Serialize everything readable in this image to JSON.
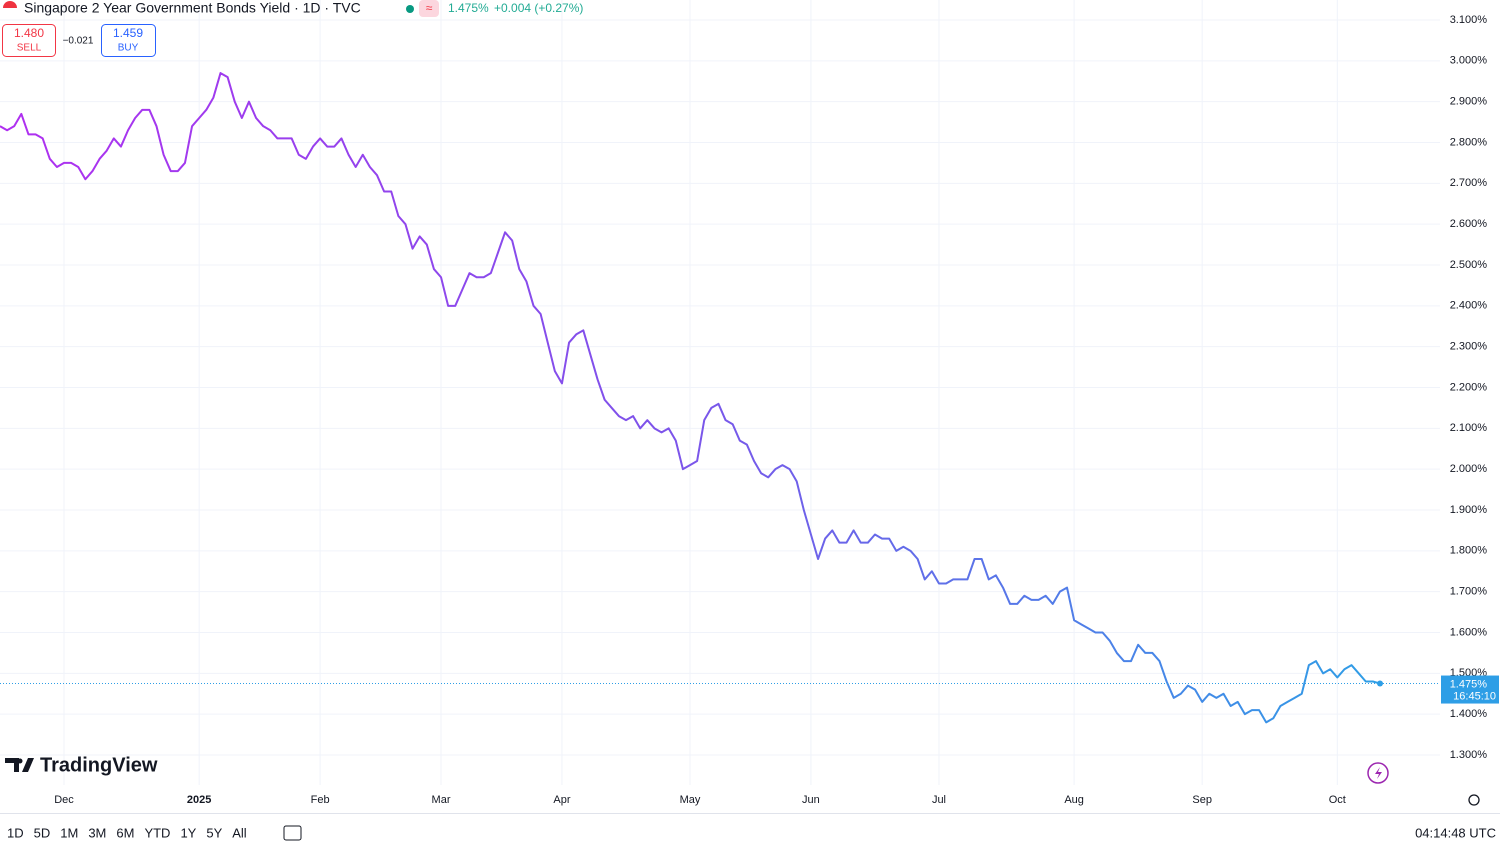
{
  "header": {
    "title": "Singapore 2 Year Government Bonds Yield · 1D · TVC",
    "price": "1.475%",
    "change": "+0.004 (+0.27%)",
    "sell_price": "1.480",
    "sell": "SELL",
    "spread": "−0.021",
    "buy_price": "1.459",
    "buy": "BUY"
  },
  "logo": "TradingView",
  "toolbar": {
    "ranges": [
      "1D",
      "5D",
      "1M",
      "3M",
      "6M",
      "YTD",
      "1Y",
      "5Y",
      "All"
    ],
    "clock": "04:14:48 UTC"
  },
  "chart_data": {
    "type": "line",
    "gradient": [
      "#b02ff0",
      "#7b55ea",
      "#2e9ee6"
    ],
    "ylim": [
      1.3,
      3.1
    ],
    "yticks": [
      {
        "value": 3.1,
        "label": "3.100%"
      },
      {
        "value": 3.0,
        "label": "3.000%"
      },
      {
        "value": 2.9,
        "label": "2.900%"
      },
      {
        "value": 2.8,
        "label": "2.800%"
      },
      {
        "value": 2.7,
        "label": "2.700%"
      },
      {
        "value": 2.6,
        "label": "2.600%"
      },
      {
        "value": 2.5,
        "label": "2.500%"
      },
      {
        "value": 2.4,
        "label": "2.400%"
      },
      {
        "value": 2.3,
        "label": "2.300%"
      },
      {
        "value": 2.2,
        "label": "2.200%"
      },
      {
        "value": 2.1,
        "label": "2.100%"
      },
      {
        "value": 2.0,
        "label": "2.000%"
      },
      {
        "value": 1.9,
        "label": "1.900%"
      },
      {
        "value": 1.8,
        "label": "1.800%"
      },
      {
        "value": 1.7,
        "label": "1.700%"
      },
      {
        "value": 1.6,
        "label": "1.600%"
      },
      {
        "value": 1.5,
        "label": "1.500%"
      },
      {
        "value": 1.4,
        "label": "1.400%"
      },
      {
        "value": 1.3,
        "label": "1.300%"
      }
    ],
    "grid": true,
    "last_price": {
      "value": 1.475,
      "label": "1.475%"
    },
    "countdown": "16:45:10",
    "categories": [
      null,
      null,
      null,
      null,
      null,
      null,
      null,
      null,
      null,
      "Dec",
      null,
      null,
      null,
      null,
      null,
      null,
      null,
      null,
      null,
      null,
      null,
      null,
      null,
      null,
      null,
      null,
      null,
      null,
      "2025",
      null,
      null,
      null,
      null,
      null,
      null,
      null,
      null,
      null,
      null,
      null,
      null,
      null,
      null,
      null,
      null,
      "Feb",
      null,
      null,
      null,
      null,
      null,
      null,
      null,
      null,
      null,
      null,
      null,
      null,
      null,
      null,
      null,
      null,
      "Mar",
      null,
      null,
      null,
      null,
      null,
      null,
      null,
      null,
      null,
      null,
      null,
      null,
      null,
      null,
      null,
      null,
      "Apr",
      null,
      null,
      null,
      null,
      null,
      null,
      null,
      null,
      null,
      null,
      null,
      null,
      null,
      null,
      null,
      null,
      null,
      "May",
      null,
      null,
      null,
      null,
      null,
      null,
      null,
      null,
      null,
      null,
      null,
      null,
      null,
      null,
      null,
      null,
      "Jun",
      null,
      null,
      null,
      null,
      null,
      null,
      null,
      null,
      null,
      null,
      null,
      null,
      null,
      null,
      null,
      null,
      null,
      "Jul",
      null,
      null,
      null,
      null,
      null,
      null,
      null,
      null,
      null,
      null,
      null,
      null,
      null,
      null,
      null,
      null,
      null,
      null,
      "Aug",
      null,
      null,
      null,
      null,
      null,
      null,
      null,
      null,
      null,
      null,
      null,
      null,
      null,
      null,
      null,
      null,
      null,
      "Sep",
      null,
      null,
      null,
      null,
      null,
      null,
      null,
      null,
      null,
      null,
      null,
      null,
      null,
      null,
      null,
      null,
      null,
      null,
      "Oct",
      null,
      null,
      null,
      null,
      null,
      null
    ],
    "values": [
      2.84,
      2.83,
      2.84,
      2.87,
      2.82,
      2.82,
      2.81,
      2.76,
      2.74,
      2.75,
      2.75,
      2.74,
      2.71,
      2.73,
      2.76,
      2.78,
      2.81,
      2.79,
      2.83,
      2.86,
      2.88,
      2.88,
      2.84,
      2.77,
      2.73,
      2.73,
      2.75,
      2.84,
      2.86,
      2.88,
      2.91,
      2.97,
      2.96,
      2.9,
      2.86,
      2.9,
      2.86,
      2.84,
      2.83,
      2.81,
      2.81,
      2.81,
      2.77,
      2.76,
      2.79,
      2.81,
      2.79,
      2.79,
      2.81,
      2.77,
      2.74,
      2.77,
      2.74,
      2.72,
      2.68,
      2.68,
      2.62,
      2.6,
      2.54,
      2.57,
      2.55,
      2.49,
      2.47,
      2.4,
      2.4,
      2.44,
      2.48,
      2.47,
      2.47,
      2.48,
      2.53,
      2.58,
      2.56,
      2.49,
      2.46,
      2.4,
      2.38,
      2.31,
      2.24,
      2.21,
      2.31,
      2.33,
      2.34,
      2.28,
      2.22,
      2.17,
      2.15,
      2.13,
      2.12,
      2.13,
      2.1,
      2.12,
      2.1,
      2.09,
      2.1,
      2.07,
      2.0,
      2.01,
      2.02,
      2.12,
      2.15,
      2.16,
      2.12,
      2.11,
      2.07,
      2.06,
      2.02,
      1.99,
      1.98,
      2.0,
      2.01,
      2.0,
      1.97,
      1.9,
      1.84,
      1.78,
      1.83,
      1.85,
      1.82,
      1.82,
      1.85,
      1.82,
      1.82,
      1.84,
      1.83,
      1.83,
      1.8,
      1.81,
      1.8,
      1.78,
      1.73,
      1.75,
      1.72,
      1.72,
      1.73,
      1.73,
      1.73,
      1.78,
      1.78,
      1.73,
      1.74,
      1.71,
      1.67,
      1.67,
      1.69,
      1.68,
      1.68,
      1.69,
      1.67,
      1.7,
      1.71,
      1.63,
      1.62,
      1.61,
      1.6,
      1.6,
      1.58,
      1.55,
      1.53,
      1.53,
      1.57,
      1.55,
      1.55,
      1.53,
      1.48,
      1.44,
      1.45,
      1.47,
      1.46,
      1.43,
      1.45,
      1.44,
      1.45,
      1.42,
      1.43,
      1.4,
      1.41,
      1.41,
      1.38,
      1.39,
      1.42,
      1.43,
      1.44,
      1.45,
      1.52,
      1.53,
      1.5,
      1.51,
      1.49,
      1.51,
      1.52,
      1.5,
      1.48,
      1.48,
      1.475
    ]
  }
}
